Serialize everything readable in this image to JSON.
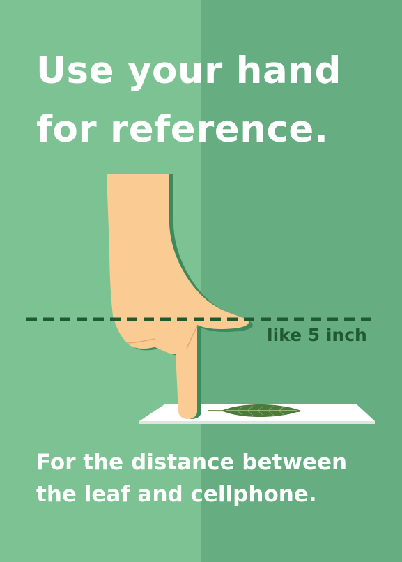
{
  "headline": {
    "line1": "Use your hand",
    "line2": "for reference."
  },
  "measurement": {
    "label": "like 5 inch"
  },
  "footer": {
    "line1": "For the distance between",
    "line2": "the leaf and cellphone."
  },
  "colors": {
    "background_left": "#7dc292",
    "background_right": "#66ae81",
    "text": "#ffffff",
    "label": "#1f5a35",
    "skin": "#fbcb94",
    "hand_shadow": "#3d8a5c",
    "leaf": "#4c7a3a"
  },
  "icons": [
    "pointing-hand-icon",
    "leaf-icon",
    "paper-sheet-icon",
    "dashed-measure-line"
  ]
}
